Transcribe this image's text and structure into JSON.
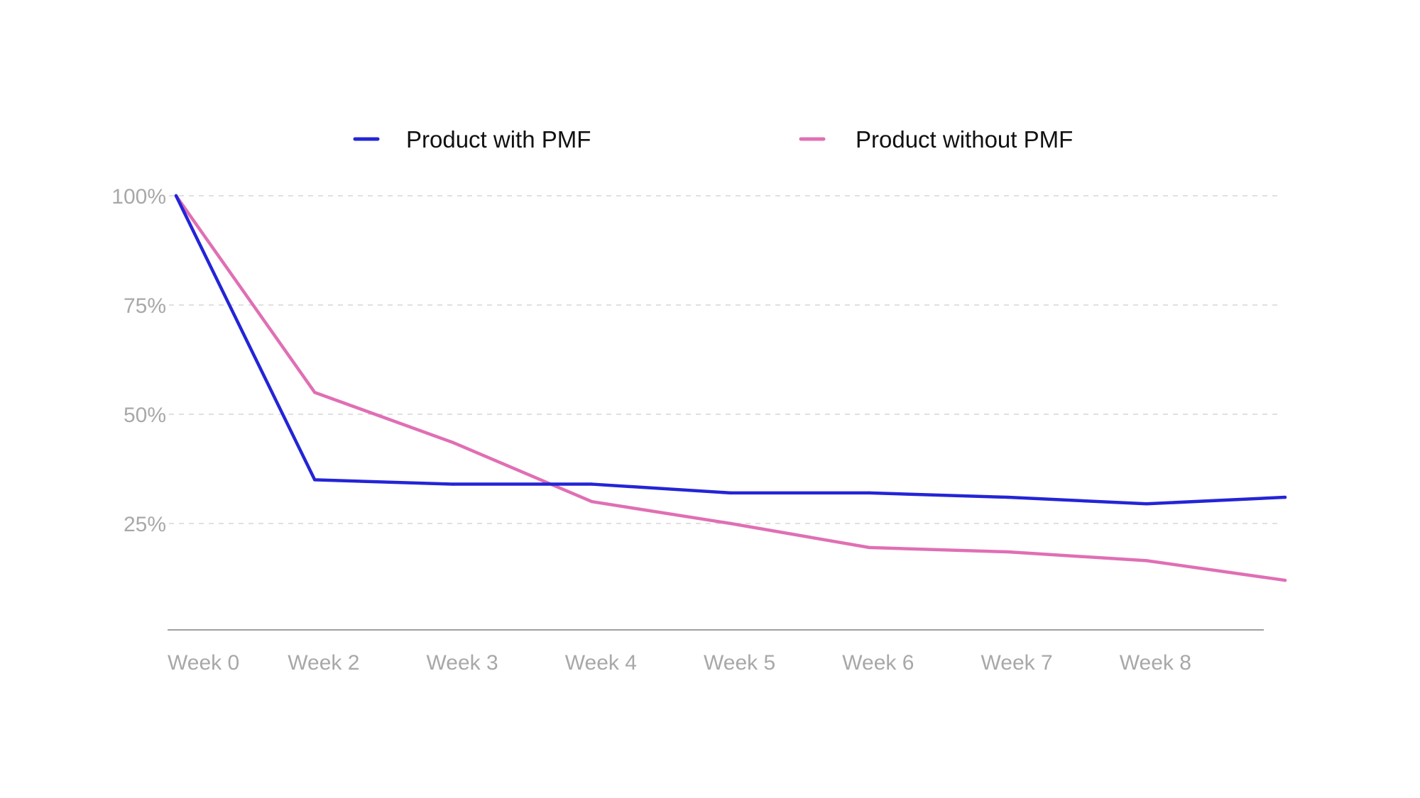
{
  "chart_data": {
    "type": "line",
    "title": "",
    "xlabel": "",
    "ylabel": "",
    "categories": [
      "Week 0",
      "Week 2",
      "Week 3",
      "Week 4",
      "Week 5",
      "Week 6",
      "Week 7",
      "Week 8",
      ""
    ],
    "y_ticks": [
      {
        "value": 100,
        "label": "100%"
      },
      {
        "value": 75,
        "label": "75%"
      },
      {
        "value": 50,
        "label": "50%"
      },
      {
        "value": 25,
        "label": "25%"
      }
    ],
    "ylim": [
      0,
      100
    ],
    "grid": "horizontal-dashed",
    "legend_placement": "top",
    "series": [
      {
        "name": "Product with PMF",
        "color": "#2424d6",
        "values": [
          100,
          35,
          34,
          34,
          32,
          32,
          31,
          29.5,
          31
        ]
      },
      {
        "name": "Product without PMF",
        "color": "#e06fb4",
        "values": [
          100,
          55,
          43.5,
          30,
          25,
          19.5,
          18.5,
          16.5,
          12
        ]
      }
    ]
  }
}
